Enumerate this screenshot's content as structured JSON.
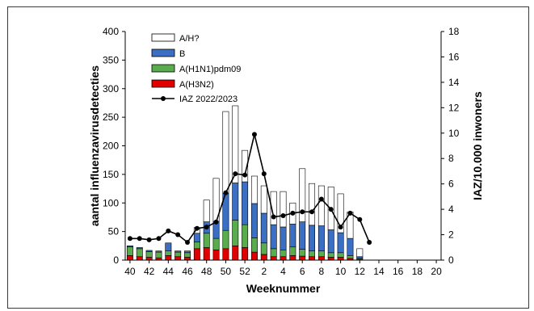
{
  "chart_data": {
    "type": "bar",
    "subtype": "stacked-bar-with-line",
    "xlabel": "Weeknummer",
    "ylabel": "aantal influenzavirusdetecties",
    "y2label": "IAZ/10.000 inwoners",
    "ylim": [
      0,
      400
    ],
    "y2lim": [
      0,
      18
    ],
    "yticks": [
      0,
      50,
      100,
      150,
      200,
      250,
      300,
      350,
      400
    ],
    "y2ticks": [
      0,
      2,
      4,
      6,
      8,
      10,
      12,
      14,
      16,
      18
    ],
    "x_tick_labels": [
      "40",
      "42",
      "44",
      "46",
      "48",
      "50",
      "52",
      "2",
      "4",
      "6",
      "8",
      "10",
      "12",
      "14",
      "16",
      "18",
      "20"
    ],
    "categories": [
      "40",
      "41",
      "42",
      "43",
      "44",
      "45",
      "46",
      "47",
      "48",
      "49",
      "50",
      "51",
      "52",
      "1",
      "2",
      "3",
      "4",
      "5",
      "6",
      "7",
      "8",
      "9",
      "10",
      "11",
      "12",
      "13",
      "14",
      "15",
      "16",
      "17",
      "18",
      "19",
      "20"
    ],
    "series": [
      {
        "name": "A(H3N2)",
        "color": "#e00000",
        "values": [
          8,
          6,
          5,
          4,
          8,
          6,
          5,
          20,
          22,
          18,
          20,
          25,
          22,
          14,
          10,
          6,
          6,
          8,
          7,
          6,
          6,
          5,
          5,
          3,
          2,
          0,
          0,
          0,
          0,
          0,
          0,
          0,
          0
        ]
      },
      {
        "name": "A(H1N1)pdm09",
        "color": "#5aad4e",
        "values": [
          15,
          14,
          10,
          10,
          8,
          8,
          8,
          12,
          25,
          20,
          32,
          45,
          40,
          25,
          20,
          14,
          12,
          15,
          12,
          10,
          10,
          8,
          8,
          5,
          2,
          0,
          0,
          0,
          0,
          0,
          0,
          0,
          0
        ]
      },
      {
        "name": "B",
        "color": "#3a6fc4",
        "values": [
          2,
          2,
          2,
          2,
          14,
          2,
          3,
          15,
          20,
          30,
          65,
          65,
          75,
          60,
          52,
          42,
          40,
          40,
          48,
          45,
          44,
          40,
          35,
          30,
          2,
          0,
          0,
          0,
          0,
          0,
          0,
          0,
          0
        ]
      },
      {
        "name": "A/H?",
        "color": "#ffffff",
        "values": [
          0,
          0,
          0,
          0,
          0,
          0,
          0,
          10,
          38,
          75,
          143,
          135,
          55,
          48,
          48,
          58,
          62,
          37,
          93,
          73,
          70,
          75,
          68,
          46,
          14,
          0,
          0,
          0,
          0,
          0,
          0,
          0,
          0
        ]
      }
    ],
    "line_series": {
      "name": "IAZ 2022/2023",
      "color": "#000000",
      "axis": "right",
      "values": [
        1.7,
        1.7,
        1.6,
        1.7,
        2.3,
        2.0,
        1.4,
        2.5,
        2.6,
        3.0,
        5.3,
        6.8,
        6.7,
        9.9,
        6.8,
        3.4,
        3.5,
        3.7,
        3.8,
        3.8,
        4.8,
        4.0,
        2.6,
        3.7,
        3.2,
        1.4
      ]
    },
    "legend_position": "top-left",
    "grid": false
  }
}
